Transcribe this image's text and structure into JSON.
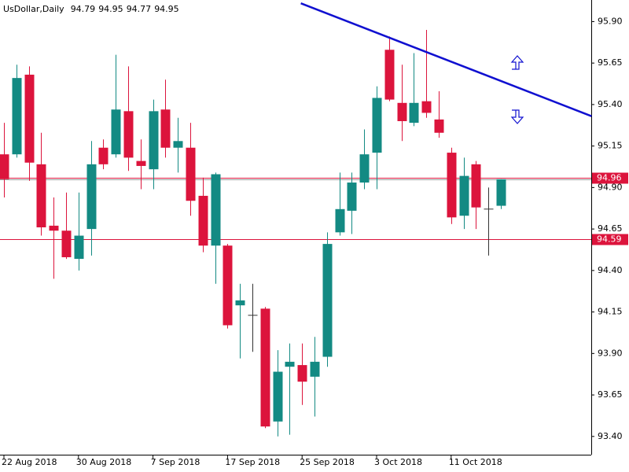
{
  "chart_data": {
    "type": "candlestick",
    "title": "UsDollar,Daily",
    "categories": [
      "22 Aug 2018",
      null,
      null,
      null,
      null,
      null,
      "30 Aug 2018",
      null,
      null,
      null,
      null,
      null,
      "7 Sep 2018",
      null,
      null,
      null,
      null,
      null,
      "17 Sep 2018",
      null,
      null,
      null,
      null,
      null,
      "25 Sep 2018",
      null,
      null,
      null,
      null,
      null,
      "3 Oct 2018",
      null,
      null,
      null,
      null,
      null,
      "11 Oct 2018",
      null,
      null,
      null,
      null
    ],
    "open": [
      95.1,
      95.1,
      95.58,
      95.04,
      94.67,
      94.64,
      94.47,
      94.65,
      95.14,
      95.1,
      95.36,
      95.06,
      95.01,
      95.37,
      95.14,
      95.14,
      94.85,
      94.55,
      94.55,
      94.19,
      94.13,
      94.17,
      93.49,
      93.82,
      93.83,
      93.76,
      93.88,
      94.63,
      94.76,
      94.93,
      95.11,
      95.73,
      95.41,
      95.29,
      95.42,
      95.31,
      95.11,
      94.73,
      95.04,
      94.77,
      94.79
    ],
    "high": [
      95.29,
      95.64,
      95.63,
      95.23,
      94.84,
      94.87,
      94.87,
      95.18,
      95.19,
      95.7,
      95.63,
      95.19,
      95.43,
      95.55,
      95.32,
      95.29,
      94.96,
      94.99,
      94.56,
      94.32,
      94.32,
      94.18,
      93.92,
      93.96,
      93.96,
      94.0,
      94.63,
      94.99,
      94.99,
      95.25,
      95.51,
      95.81,
      95.64,
      95.71,
      95.85,
      95.48,
      95.14,
      95.08,
      95.06,
      94.9,
      94.95
    ],
    "low": [
      94.84,
      95.08,
      94.94,
      94.61,
      94.35,
      94.47,
      94.4,
      94.49,
      95.01,
      95.08,
      95.0,
      94.89,
      94.89,
      95.08,
      94.99,
      94.73,
      94.51,
      94.32,
      94.05,
      93.87,
      93.91,
      93.45,
      93.4,
      93.41,
      93.59,
      93.52,
      93.82,
      94.61,
      94.62,
      94.89,
      94.89,
      95.42,
      95.18,
      95.27,
      95.32,
      95.2,
      94.68,
      94.65,
      94.65,
      94.49,
      94.77
    ],
    "close": [
      94.95,
      95.56,
      95.05,
      94.66,
      94.64,
      94.48,
      94.61,
      95.04,
      95.04,
      95.37,
      95.08,
      95.03,
      95.36,
      95.14,
      95.18,
      94.82,
      94.55,
      94.98,
      94.07,
      94.22,
      94.13,
      93.46,
      93.79,
      93.85,
      93.73,
      93.85,
      94.56,
      94.77,
      94.93,
      95.1,
      95.44,
      95.43,
      95.3,
      95.41,
      95.35,
      95.23,
      94.72,
      94.97,
      94.78,
      94.77,
      94.95
    ],
    "up_color": "#138a83",
    "down_color": "#dc143c",
    "doji_color": "#333333",
    "ylim": [
      93.29,
      96.03
    ],
    "yticks": [
      {
        "value": 93.4,
        "label": "93.40"
      },
      93.65,
      {
        "value": 93.9,
        "label": "93.90"
      },
      94.15,
      {
        "value": 94.4,
        "label": "94.40"
      },
      94.65,
      {
        "value": 94.9,
        "label": "94.90"
      },
      95.15,
      {
        "value": 95.4,
        "label": "95.40"
      },
      95.65,
      {
        "value": 95.9,
        "label": "95.90"
      }
    ],
    "hlines": [
      {
        "value": 94.96,
        "label": "94.96",
        "color": "#dc143c"
      },
      {
        "value": 94.59,
        "label": "94.59",
        "color": "#dc143c"
      }
    ],
    "trendline": {
      "x": [
        23.9,
        47.3
      ],
      "y": [
        96.01,
        95.33
      ],
      "color": "#1010d0"
    }
  }
}
